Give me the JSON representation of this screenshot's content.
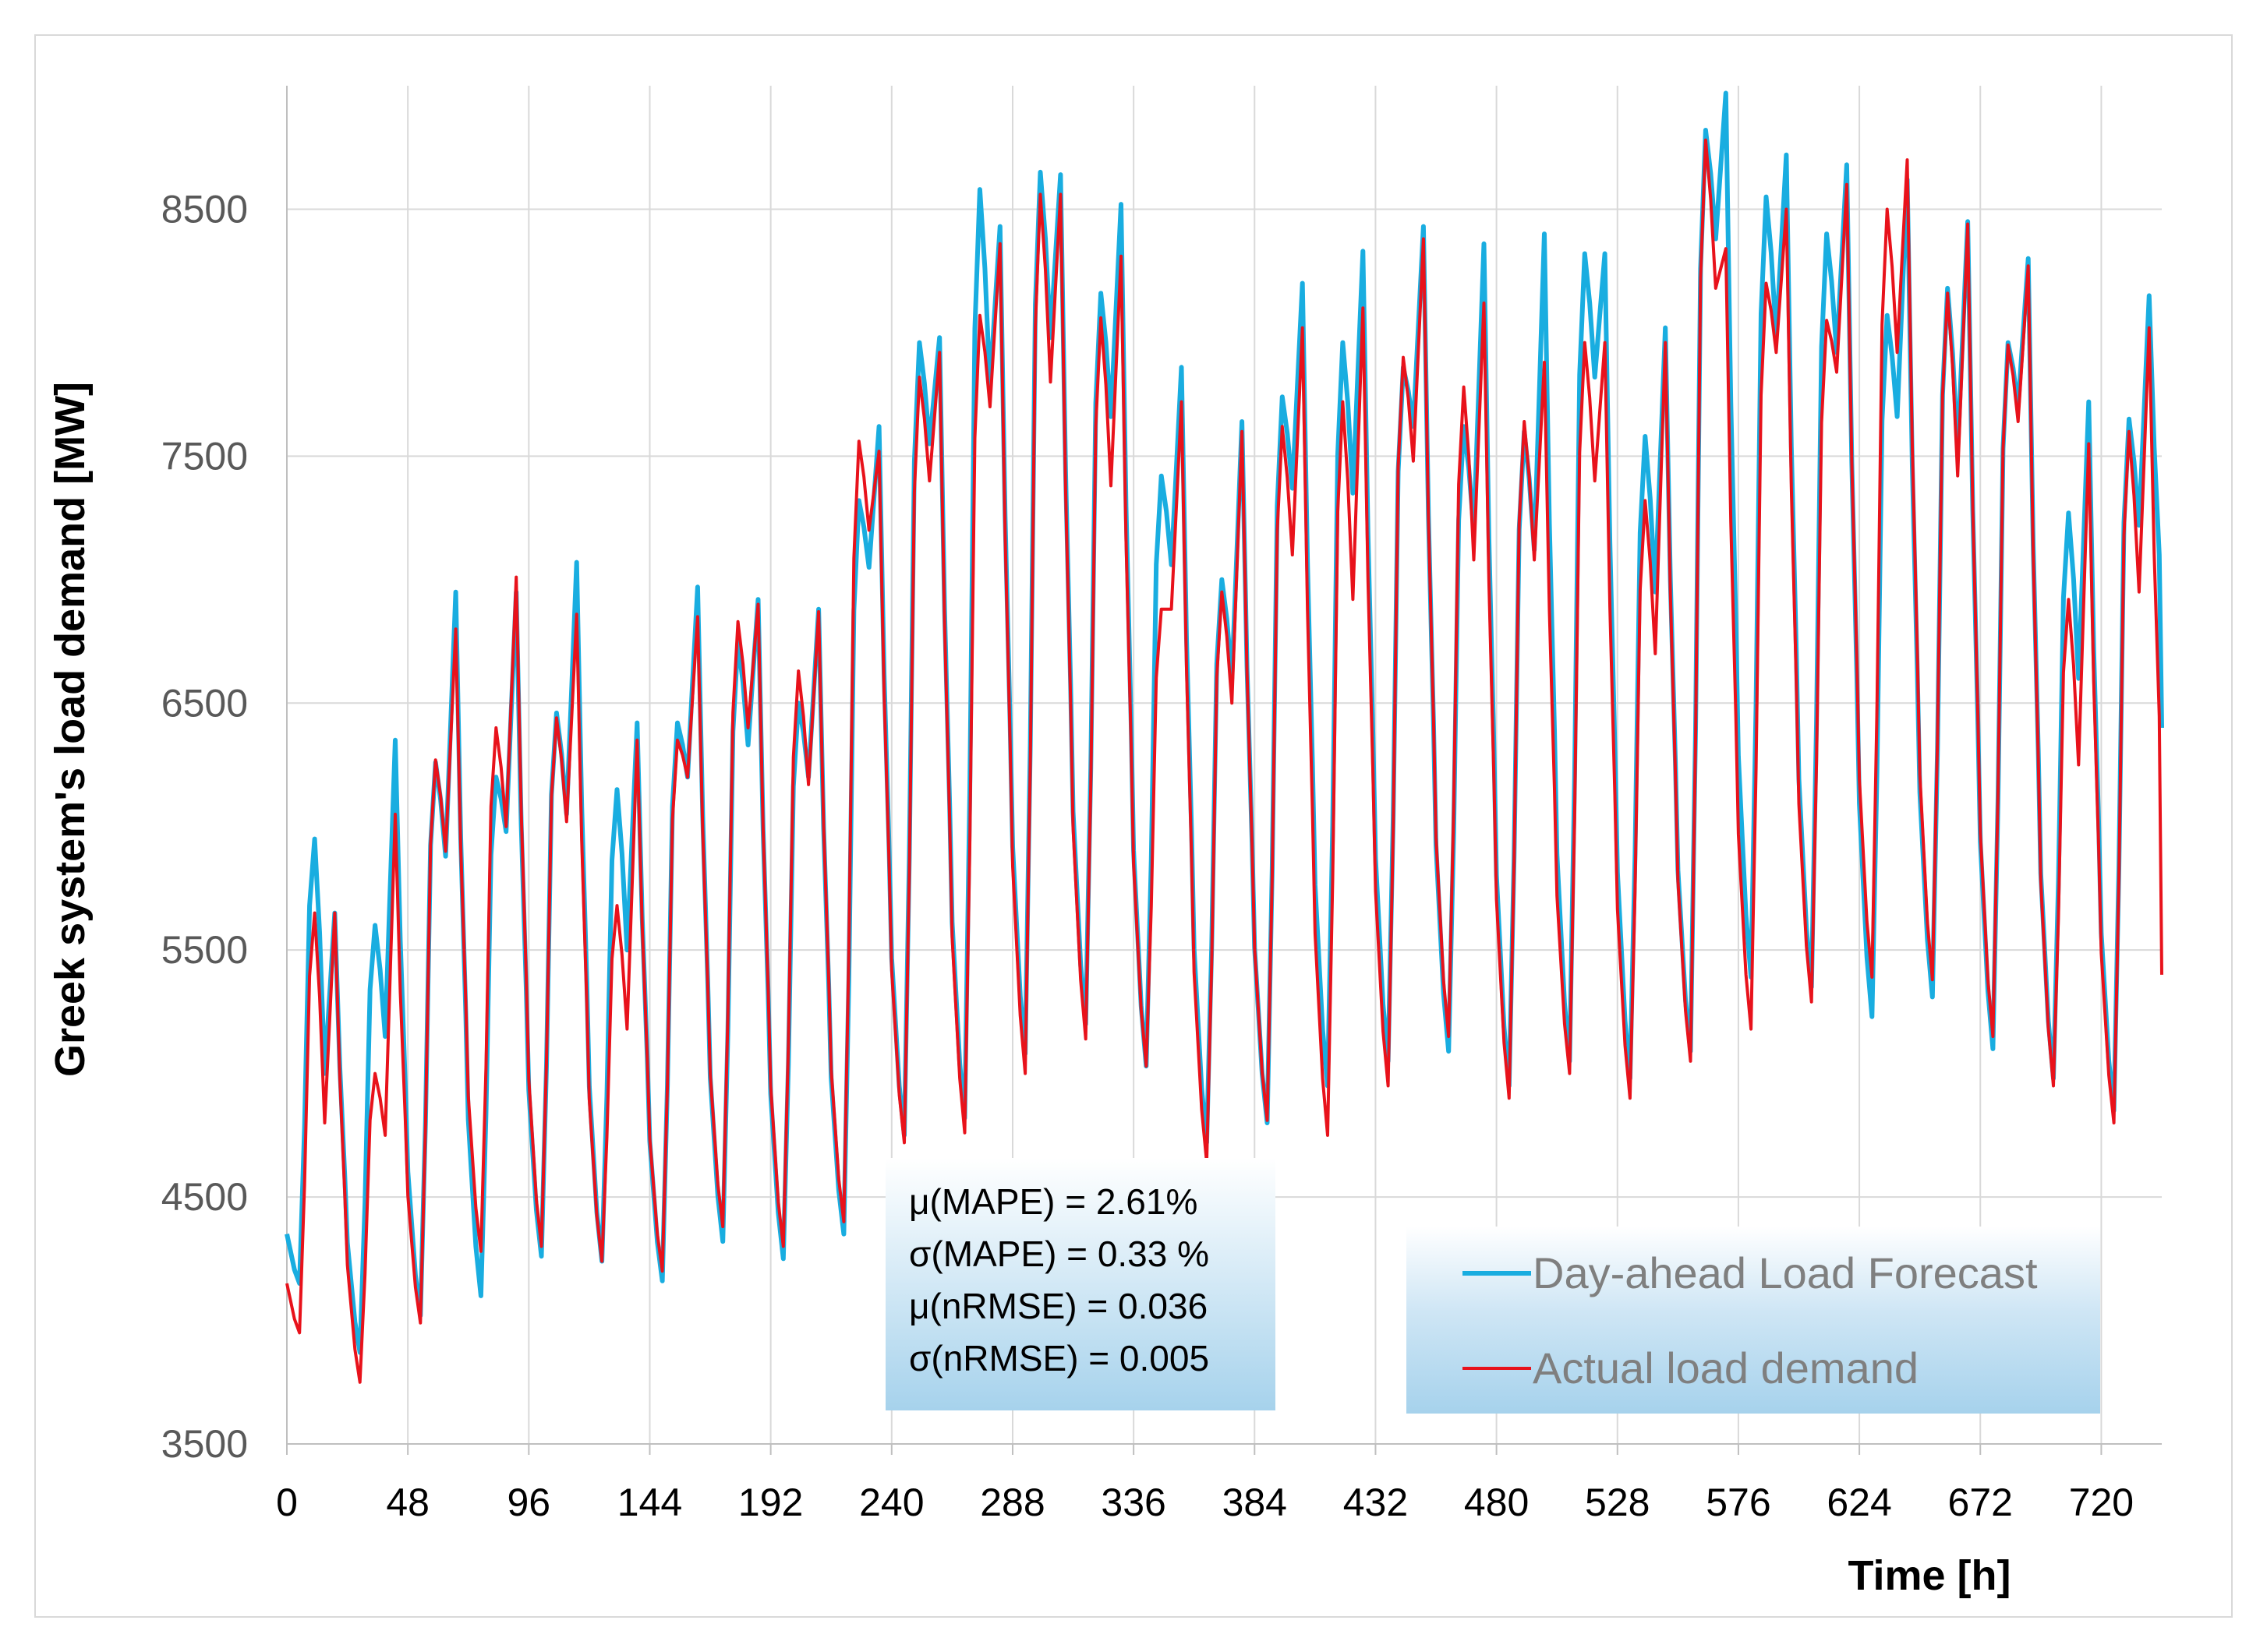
{
  "chart_data": {
    "type": "line",
    "xlabel": "Time [h]",
    "ylabel": "Greek system's load demand [MW]",
    "xlim": [
      0,
      744
    ],
    "ylim": [
      3500,
      9000
    ],
    "xticks": [
      0,
      48,
      96,
      144,
      192,
      240,
      288,
      336,
      384,
      432,
      480,
      528,
      576,
      624,
      672,
      720
    ],
    "yticks": [
      3500,
      4500,
      5500,
      6500,
      7500,
      8500
    ],
    "grid": true,
    "legend_position": "bottom-right",
    "colors": {
      "forecast": "#19ade0",
      "actual": "#e8121b"
    },
    "daily_profiles": [
      {
        "day": 1,
        "forecast": [
          4150,
          5950,
          5000,
          5650
        ],
        "actual": [
          3950,
          5650,
          4800,
          5650
        ]
      },
      {
        "day": 2,
        "forecast": [
          3870,
          5600,
          5150,
          6350
        ],
        "actual": [
          3750,
          5000,
          4750,
          6050
        ]
      },
      {
        "day": 3,
        "forecast": [
          4020,
          6260,
          5880,
          6950
        ],
        "actual": [
          3990,
          6270,
          5900,
          6800
        ]
      },
      {
        "day": 4,
        "forecast": [
          4100,
          6200,
          5980,
          6950
        ],
        "actual": [
          4280,
          6400,
          6000,
          7010
        ]
      },
      {
        "day": 5,
        "forecast": [
          4260,
          6460,
          6050,
          7070
        ],
        "actual": [
          4300,
          6440,
          6020,
          6860
        ]
      },
      {
        "day": 6,
        "forecast": [
          4240,
          6150,
          5500,
          6420
        ],
        "actual": [
          4240,
          5680,
          5180,
          6350
        ]
      },
      {
        "day": 7,
        "forecast": [
          4160,
          6420,
          6200,
          6970
        ],
        "actual": [
          4200,
          6350,
          6200,
          6850
        ]
      },
      {
        "day": 8,
        "forecast": [
          4320,
          6750,
          6330,
          6920
        ],
        "actual": [
          4380,
          6830,
          6400,
          6900
        ]
      },
      {
        "day": 9,
        "forecast": [
          4250,
          6500,
          6200,
          6880
        ],
        "actual": [
          4300,
          6630,
          6170,
          6870
        ]
      },
      {
        "day": 10,
        "forecast": [
          4350,
          7320,
          7050,
          7620
        ],
        "actual": [
          4400,
          7560,
          7200,
          7520
        ]
      },
      {
        "day": 11,
        "forecast": [
          4750,
          7960,
          7550,
          7980
        ],
        "actual": [
          4720,
          7820,
          7400,
          7920
        ]
      },
      {
        "day": 12,
        "forecast": [
          4820,
          8580,
          7780,
          8430
        ],
        "actual": [
          4760,
          8070,
          7700,
          8360
        ]
      },
      {
        "day": 13,
        "forecast": [
          5080,
          8650,
          7980,
          8640
        ],
        "actual": [
          5000,
          8560,
          7800,
          8560
        ]
      },
      {
        "day": 14,
        "forecast": [
          5200,
          8160,
          7660,
          8520
        ],
        "actual": [
          5140,
          8060,
          7380,
          8310
        ]
      },
      {
        "day": 15,
        "forecast": [
          5030,
          7420,
          7060,
          7860
        ],
        "actual": [
          5030,
          6880,
          6880,
          7720
        ]
      },
      {
        "day": 16,
        "forecast": [
          4720,
          7000,
          6600,
          7640
        ],
        "actual": [
          4640,
          6950,
          6500,
          7600
        ]
      },
      {
        "day": 17,
        "forecast": [
          4800,
          7740,
          7370,
          8200
        ],
        "actual": [
          4810,
          7620,
          7100,
          8020
        ]
      },
      {
        "day": 18,
        "forecast": [
          4950,
          7960,
          7350,
          8330
        ],
        "actual": [
          4750,
          7720,
          6920,
          8100
        ]
      },
      {
        "day": 19,
        "forecast": [
          5050,
          7860,
          7620,
          8430
        ],
        "actual": [
          4950,
          7900,
          7480,
          8380
        ]
      },
      {
        "day": 20,
        "forecast": [
          5090,
          7620,
          7200,
          8360
        ],
        "actual": [
          5150,
          7780,
          7080,
          8120
        ]
      },
      {
        "day": 21,
        "forecast": [
          4950,
          7600,
          7120,
          8400
        ],
        "actual": [
          4900,
          7640,
          7080,
          7880
        ]
      },
      {
        "day": 22,
        "forecast": [
          5050,
          8320,
          7820,
          8320
        ],
        "actual": [
          5000,
          7960,
          7400,
          7960
        ]
      },
      {
        "day": 23,
        "forecast": [
          4980,
          7580,
          6950,
          8020
        ],
        "actual": [
          4900,
          7320,
          6700,
          7960
        ]
      },
      {
        "day": 24,
        "forecast": [
          5090,
          8820,
          8380,
          8970
        ],
        "actual": [
          5050,
          8780,
          8180,
          8340
        ]
      },
      {
        "day": 25,
        "forecast": [
          5390,
          8550,
          7980,
          8720
        ],
        "actual": [
          5180,
          8200,
          7920,
          8500
        ]
      },
      {
        "day": 26,
        "forecast": [
          5350,
          8400,
          7920,
          8680
        ],
        "actual": [
          5290,
          8050,
          7840,
          8600
        ]
      },
      {
        "day": 27,
        "forecast": [
          5230,
          8070,
          7660,
          8620
        ],
        "actual": [
          5390,
          8500,
          7920,
          8700
        ]
      },
      {
        "day": 28,
        "forecast": [
          5310,
          8180,
          7520,
          8450
        ],
        "actual": [
          5380,
          8160,
          7420,
          8440
        ]
      },
      {
        "day": 29,
        "forecast": [
          5100,
          7960,
          7700,
          8300
        ],
        "actual": [
          5150,
          7950,
          7640,
          8270
        ]
      },
      {
        "day": 30,
        "forecast": [
          4980,
          7270,
          6600,
          7720
        ],
        "actual": [
          4950,
          6920,
          6250,
          7550
        ]
      },
      {
        "day": 31,
        "forecast": [
          4850,
          7650,
          7220,
          8150
        ],
        "actual": [
          4800,
          7600,
          6950,
          8020
        ]
      }
    ],
    "series": [
      {
        "name": "Day-ahead Load Forecast",
        "key": "forecast"
      },
      {
        "name": "Actual load demand",
        "key": "actual"
      }
    ],
    "annotations": [
      "μ(MAPE) = 2.61%",
      "σ(MAPE) = 0.33 %",
      "μ(nRMSE) = 0.036",
      "σ(nRMSE) = 0.005"
    ],
    "end_values": {
      "forecast": 6400,
      "actual": 5400
    }
  }
}
